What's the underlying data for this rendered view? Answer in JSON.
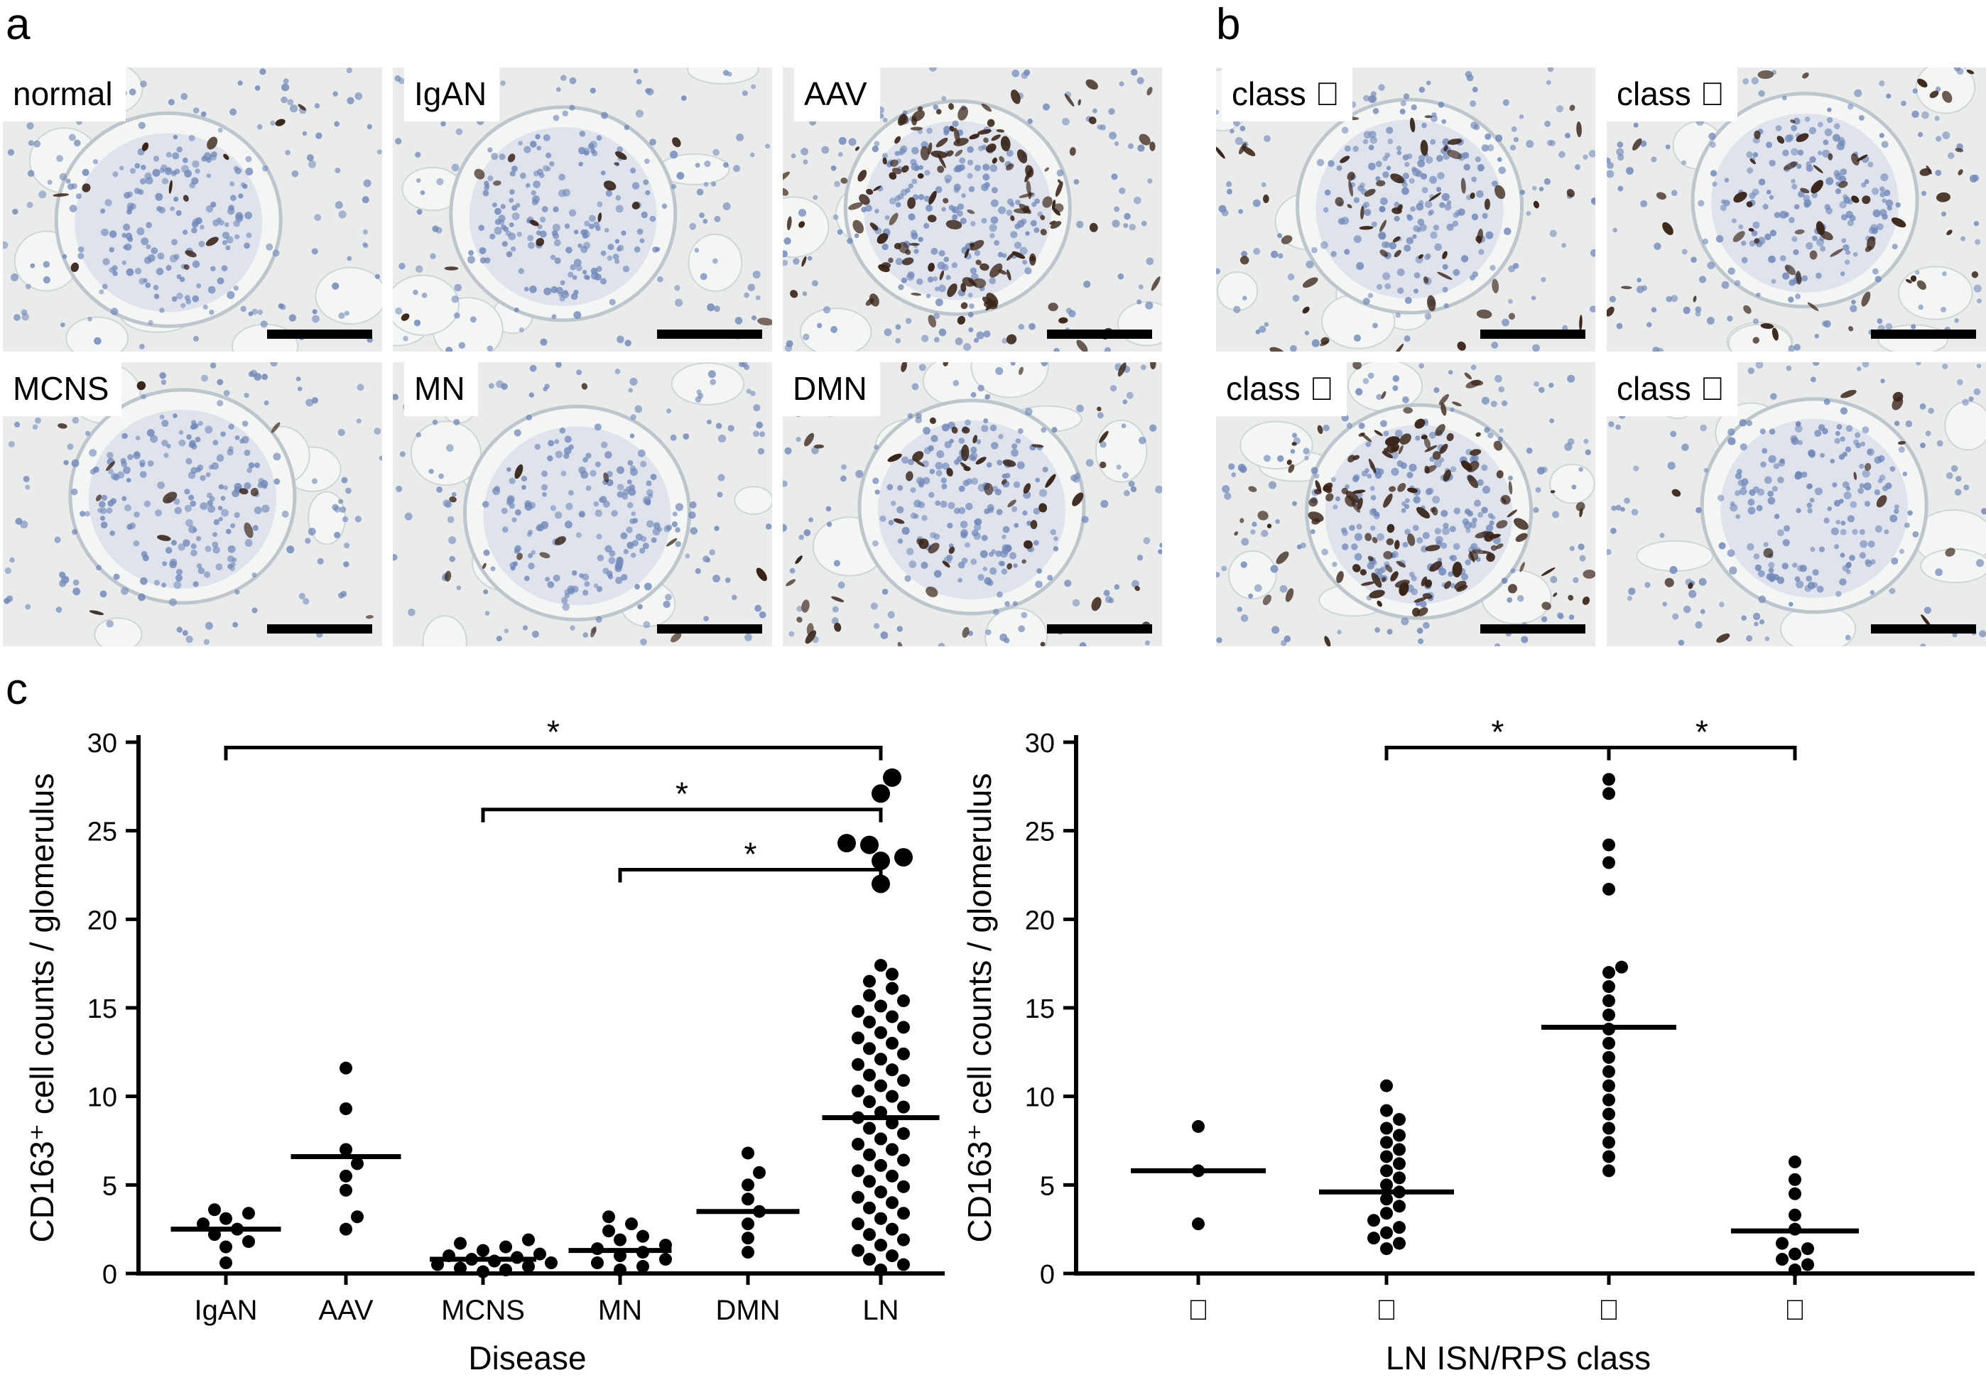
{
  "figure": {
    "panel_a": {
      "label": "a",
      "images": [
        {
          "label": "normal",
          "tone": "light"
        },
        {
          "label": "IgAN",
          "tone": "light"
        },
        {
          "label": "AAV",
          "tone": "heavy"
        },
        {
          "label": "MCNS",
          "tone": "light"
        },
        {
          "label": "MN",
          "tone": "light"
        },
        {
          "label": "DMN",
          "tone": "medium"
        }
      ]
    },
    "panel_b": {
      "label": "b",
      "images": [
        {
          "label": "class \u0000",
          "tone": "medium"
        },
        {
          "label": "class \u0000",
          "tone": "medium"
        },
        {
          "label": "class \u0000",
          "tone": "heavy"
        },
        {
          "label": "class \u0000",
          "tone": "light"
        }
      ]
    },
    "panel_c": {
      "label": "c"
    }
  },
  "colors": {
    "tissue_bg": "#e9ecea",
    "tissue_lumen": "#f4f6f4",
    "nucleus": "#6f87b9",
    "stain": "#3a2418",
    "ink": "#000000"
  },
  "chart_data": [
    {
      "type": "scatter",
      "title": "",
      "xlabel": "Disease",
      "ylabel": "CD163⁺ cell counts / glomerulus",
      "ylim": [
        0,
        30
      ],
      "yticks": [
        0,
        5,
        10,
        15,
        20,
        25,
        30
      ],
      "categories": [
        "IgAN",
        "AAV",
        "MCNS",
        "MN",
        "DMN",
        "LN"
      ],
      "points": [
        [
          0.6,
          1.5,
          1.8,
          2.2,
          2.5,
          2.8,
          3.1,
          3.4,
          3.6
        ],
        [
          2.5,
          3.2,
          4.7,
          5.5,
          6.2,
          7.0,
          9.3,
          11.6
        ],
        [
          0.1,
          0.2,
          0.3,
          0.4,
          0.5,
          0.6,
          0.7,
          0.8,
          0.9,
          1.0,
          1.1,
          1.3,
          1.5,
          1.7,
          1.9
        ],
        [
          0.2,
          0.4,
          0.6,
          0.8,
          1.0,
          1.2,
          1.4,
          1.6,
          1.9,
          2.1,
          2.4,
          2.8,
          3.2
        ],
        [
          1.2,
          2.0,
          2.8,
          3.5,
          4.2,
          5.0,
          5.7,
          6.8
        ],
        [
          0.2,
          0.5,
          0.8,
          1.0,
          1.3,
          1.6,
          1.9,
          2.2,
          2.5,
          2.8,
          3.1,
          3.4,
          3.7,
          4.0,
          4.3,
          4.6,
          4.9,
          5.2,
          5.5,
          5.8,
          6.1,
          6.4,
          6.7,
          7.0,
          7.3,
          7.6,
          7.9,
          8.2,
          8.5,
          8.8,
          9.1,
          9.4,
          9.7,
          10.0,
          10.3,
          10.6,
          10.9,
          11.2,
          11.5,
          11.8,
          12.1,
          12.4,
          12.7,
          13.0,
          13.3,
          13.6,
          13.9,
          14.2,
          14.5,
          14.8,
          15.1,
          15.4,
          15.7,
          16.1,
          16.5,
          16.9,
          17.4
        ]
      ],
      "large_points": [
        [],
        [],
        [],
        [],
        [],
        [
          22.0,
          23.3,
          23.5,
          24.2,
          24.3,
          27.1,
          28.0
        ]
      ],
      "medians": [
        2.5,
        6.6,
        0.8,
        1.3,
        3.5,
        8.8
      ],
      "significance": [
        {
          "from": 0,
          "to": 5,
          "y": 29.7,
          "label": "*"
        },
        {
          "from": 2,
          "to": 5,
          "y": 26.2,
          "label": "*"
        },
        {
          "from": 3,
          "to": 5,
          "y": 22.8,
          "label": "*"
        }
      ]
    },
    {
      "type": "scatter",
      "title": "",
      "xlabel": "LN ISN/RPS class",
      "ylabel": "CD163⁺ cell counts / glomerulus",
      "ylim": [
        0,
        30
      ],
      "yticks": [
        0,
        5,
        10,
        15,
        20,
        25,
        30
      ],
      "categories": [
        "\u0000",
        "\u0000",
        "\u0000",
        "\u0000"
      ],
      "points": [
        [
          2.8,
          5.8,
          8.3
        ],
        [
          1.4,
          1.7,
          2.0,
          2.3,
          2.6,
          3.0,
          3.4,
          3.8,
          4.2,
          4.6,
          5.0,
          5.4,
          5.8,
          6.2,
          6.6,
          7.0,
          7.4,
          7.8,
          8.2,
          8.7,
          9.2,
          10.6
        ],
        [
          5.8,
          6.6,
          7.4,
          8.2,
          9.0,
          9.8,
          10.6,
          11.4,
          12.2,
          13.0,
          13.8,
          14.6,
          15.4,
          16.2,
          17.0,
          17.3,
          21.7,
          23.2,
          24.2,
          27.1,
          27.9
        ],
        [
          0.2,
          0.5,
          0.8,
          1.1,
          1.4,
          1.7,
          2.5,
          3.3,
          4.5,
          5.3,
          6.3
        ]
      ],
      "large_points": [
        [],
        [],
        [],
        []
      ],
      "medians": [
        5.8,
        4.6,
        13.9,
        2.4
      ],
      "significance": [
        {
          "from": 1,
          "to": 2,
          "y": 29.7,
          "label": "*"
        },
        {
          "from": 2,
          "to": 3,
          "y": 29.7,
          "label": "*"
        }
      ]
    }
  ]
}
